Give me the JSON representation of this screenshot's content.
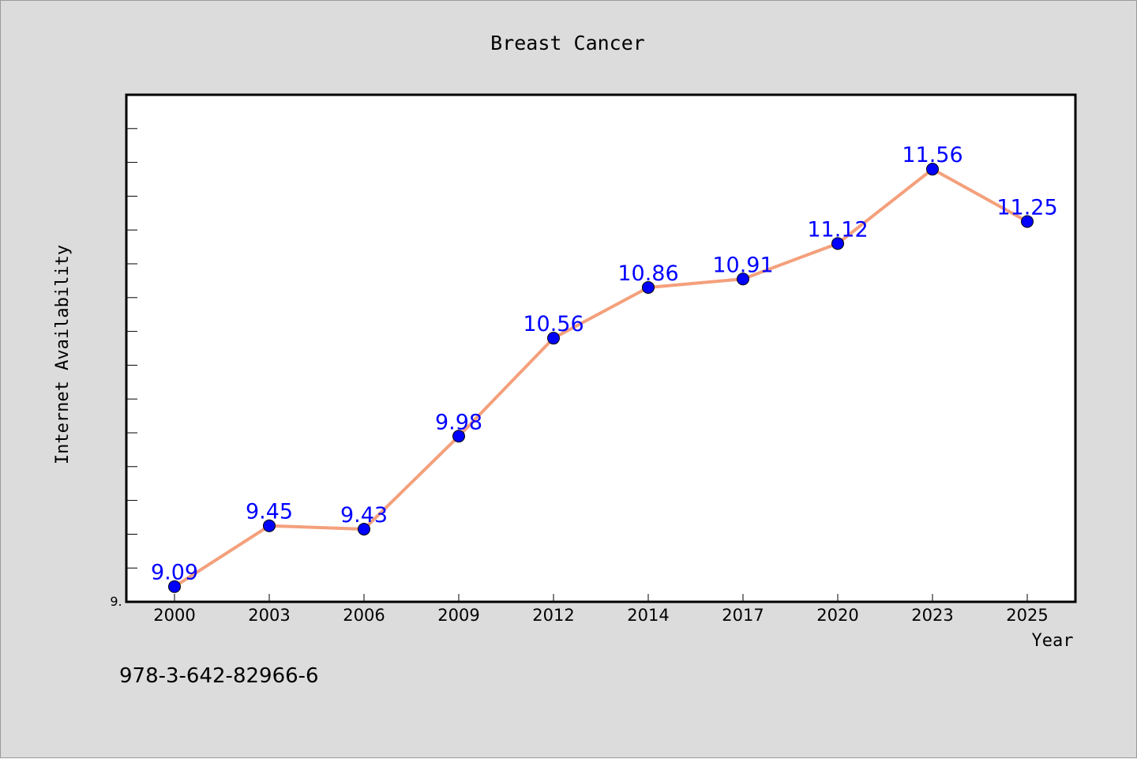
{
  "chart_data": {
    "type": "line",
    "title": "Breast Cancer",
    "xlabel": "Year",
    "ylabel": "Internet Availability",
    "categories": [
      "2000",
      "2003",
      "2006",
      "2009",
      "2012",
      "2014",
      "2017",
      "2020",
      "2023",
      "2025"
    ],
    "series": [
      {
        "values": [
          9.09,
          9.45,
          9.43,
          9.98,
          10.56,
          10.86,
          10.91,
          11.12,
          11.56,
          11.25
        ],
        "labels": [
          "9.09",
          "9.45",
          "9.43",
          "9.98",
          "10.56",
          "10.86",
          "10.91",
          "11.12",
          "11.56",
          "11.25"
        ],
        "line_color": "#f4a07c",
        "marker_color": "#0000ff",
        "label_color": "#0000ff"
      }
    ],
    "ylim": [
      9.0,
      12.0
    ],
    "y_tick_label": "9.",
    "grid": false,
    "legend": "none"
  },
  "footer_text": "978-3-642-82966-6",
  "colors": {
    "background": "#dcdcdc",
    "plot_background": "#ffffff",
    "axis": "#000000"
  }
}
